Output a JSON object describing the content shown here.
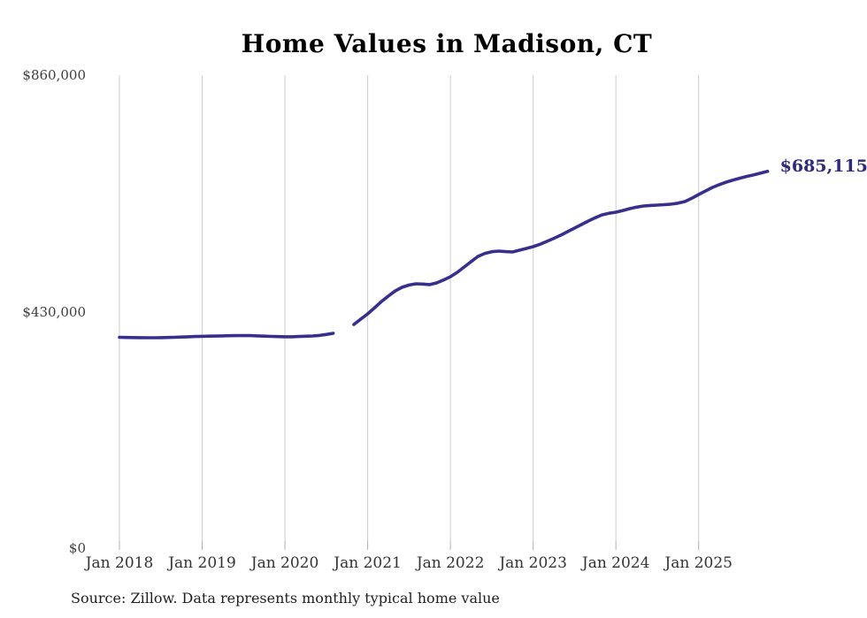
{
  "chart": {
    "title": "Home Values in Madison, CT",
    "source_note": "Source: Zillow. Data represents monthly typical home value",
    "end_value_label": "$685,115",
    "y_tick_labels": [
      "$860,000",
      "$430,000",
      "$0"
    ],
    "x_tick_labels": [
      "Jan 2018",
      "Jan 2019",
      "Jan 2020",
      "Jan 2021",
      "Jan 2022",
      "Jan 2023",
      "Jan 2024",
      "Jan 2025"
    ],
    "colors": {
      "line": "#36308c",
      "end_label": "#2d2a7d",
      "grid": "#cccccc",
      "tick": "#b0b0b0",
      "axis_text": "#3d3d3d",
      "title_text": "#000000",
      "source_text": "#1f1f1f",
      "background": "#ffffff"
    }
  },
  "chart_data": {
    "type": "line",
    "title": "Home Values in Madison, CT",
    "ylabel": "",
    "xlabel": "",
    "unit": "USD",
    "frequency": "monthly",
    "x_start": "2018-01",
    "x_end": "2025-11",
    "x_tick_labels": [
      "Jan 2018",
      "Jan 2019",
      "Jan 2020",
      "Jan 2021",
      "Jan 2022",
      "Jan 2023",
      "Jan 2024",
      "Jan 2025"
    ],
    "y_ticks": [
      {
        "label": "$860,000",
        "value": 860000
      },
      {
        "label": "$430,000",
        "value": 430000
      },
      {
        "label": "$0",
        "value": 0
      }
    ],
    "ylim": [
      0,
      860000
    ],
    "grid": "vertical-only",
    "legend": "none",
    "gap_note": "no data Sep 2020 - Oct 2020",
    "end_value": 685115,
    "end_label": "$685,115",
    "series": [
      {
        "name": "Typical home value",
        "values": [
          383400,
          383100,
          382900,
          382700,
          382600,
          382600,
          382700,
          383000,
          383400,
          383900,
          384400,
          384800,
          385100,
          385400,
          385700,
          386000,
          386300,
          386500,
          386600,
          386400,
          386000,
          385500,
          385000,
          384600,
          384300,
          384400,
          384800,
          385300,
          385800,
          386800,
          388500,
          390600,
          null,
          null,
          406700,
          416500,
          426000,
          437000,
          448500,
          458500,
          467800,
          474400,
          478400,
          480700,
          480200,
          479200,
          482300,
          487500,
          493500,
          501500,
          511200,
          521000,
          530500,
          536000,
          539000,
          540100,
          539200,
          538500,
          541700,
          545000,
          548200,
          552500,
          557800,
          563300,
          569100,
          575400,
          581900,
          588400,
          594800,
          600700,
          606000,
          608900,
          610900,
          613900,
          617300,
          620000,
          622100,
          623100,
          623700,
          624500,
          625400,
          627300,
          630200,
          636000,
          643000,
          649500,
          655900,
          661000,
          665500,
          669400,
          672800,
          675900,
          678700,
          681900,
          685115
        ]
      }
    ]
  }
}
